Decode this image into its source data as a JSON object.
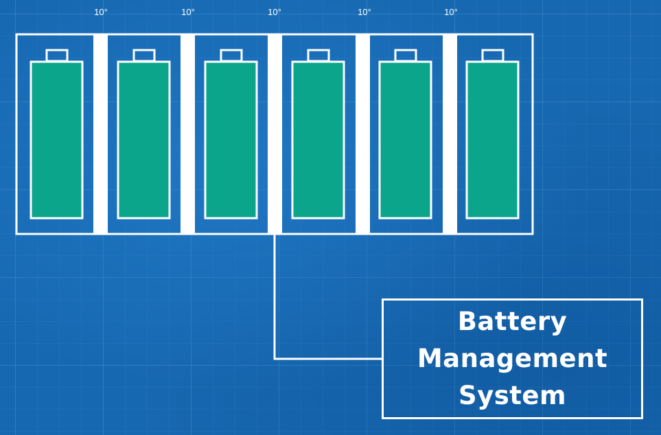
{
  "diagram": {
    "gap_labels": [
      "10°",
      "10°",
      "10°",
      "10°",
      "10°"
    ],
    "battery_count": 6,
    "bms_label_lines": [
      "Battery",
      "Management",
      "System"
    ]
  },
  "colors": {
    "background": "#1668b0",
    "battery_fill": "#0aa58a",
    "outline": "#ffffff"
  }
}
